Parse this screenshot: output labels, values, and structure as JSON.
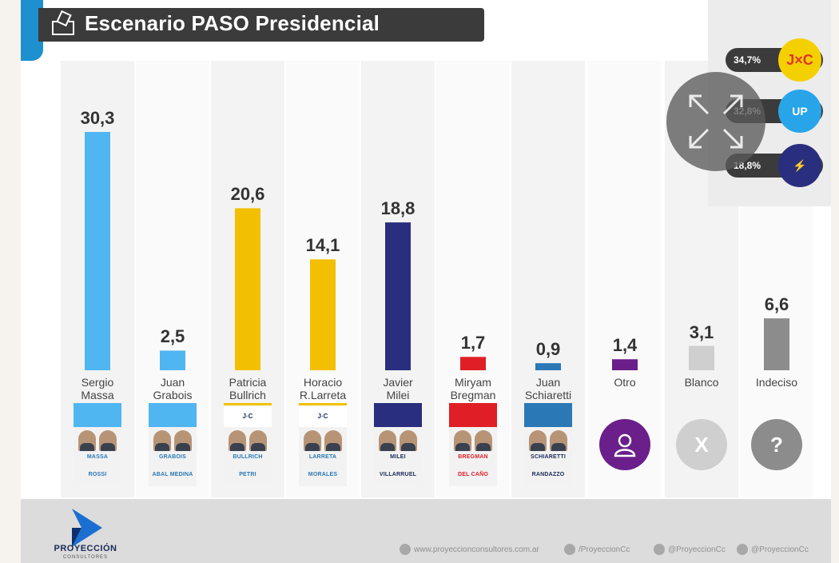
{
  "header": {
    "title": "Escenario PASO Presidencial"
  },
  "chart_data": {
    "type": "bar",
    "title": "Escenario PASO Presidencial",
    "categories": [
      "Sergio Massa",
      "Juan Grabois",
      "Patricia Bullrich",
      "Horacio R.Larreta",
      "Javier Milei",
      "Miryam Bregman",
      "Juan Schiaretti",
      "Otro",
      "Blanco",
      "Indeciso"
    ],
    "values": [
      30.3,
      2.5,
      20.6,
      14.1,
      18.8,
      1.7,
      0.9,
      1.4,
      3.1,
      6.6
    ],
    "value_labels": [
      "30,3",
      "2,5",
      "20,6",
      "14,1",
      "18,8",
      "1,7",
      "0,9",
      "1,4",
      "3,1",
      "6,6"
    ],
    "name_lines": [
      [
        "Sergio",
        "Massa"
      ],
      [
        "Juan",
        "Grabois"
      ],
      [
        "Patricia",
        "Bullrich"
      ],
      [
        "Horacio",
        "R.Larreta"
      ],
      [
        "Javier",
        "Milei"
      ],
      [
        "Miryam",
        "Bregman"
      ],
      [
        "Juan",
        "Schiaretti"
      ],
      [
        "Otro",
        ""
      ],
      [
        "Blanco",
        ""
      ],
      [
        "Indeciso",
        ""
      ]
    ],
    "colors": [
      "#4fb6f2",
      "#4fb6f2",
      "#f2c000",
      "#f2c000",
      "#2a2e7e",
      "#e01e26",
      "#2b78b6",
      "#6a1f8a",
      "#cfcfcf",
      "#8c8c8c"
    ],
    "ylim": [
      0,
      32
    ],
    "grid": false,
    "legend": [
      {
        "value": "34,7%",
        "color": "#f5d000",
        "icon": "jxc-logo-icon",
        "badge_text": "J×C"
      },
      {
        "value": "32,8%",
        "color": "#28a5e8",
        "icon": "sun-logo-icon",
        "badge_text": "UP"
      },
      {
        "value": "18,8%",
        "color": "#2a2e7e",
        "icon": "flame-logo-icon",
        "badge_text": "⚡"
      }
    ]
  },
  "ballots": [
    {
      "header": "",
      "name1": "MASSA",
      "name2": "ROSSI",
      "color": "#4fb6f2"
    },
    {
      "header": "",
      "name1": "GRABOIS",
      "name2": "ABAL MEDINA",
      "color": "#4fb6f2"
    },
    {
      "header": "J·C",
      "name1": "BULLRICH",
      "name2": "PETRI",
      "color": "#f2c000"
    },
    {
      "header": "J·C",
      "name1": "LARRETA",
      "name2": "MORALES",
      "color": "#f2c000"
    },
    {
      "header": "",
      "name1": "MILEI",
      "name2": "VILLARRUEL",
      "color": "#2a2e7e"
    },
    {
      "header": "",
      "name1": "BREGMAN",
      "name2": "DEL CAÑO",
      "color": "#e01e26"
    },
    {
      "header": "",
      "name1": "SCHIARETTI",
      "name2": "RANDAZZO",
      "color": "#2b78b6"
    }
  ],
  "round_icons": [
    {
      "glyph": "",
      "color": "#6a1f8a",
      "icon": "person-icon"
    },
    {
      "glyph": "X",
      "color": "#cfcfcf",
      "icon": "blank-x-icon"
    },
    {
      "glyph": "?",
      "color": "#8c8c8c",
      "icon": "question-icon"
    }
  ],
  "footer": {
    "brand": "PROYECCIÓN",
    "brand_sub": "CONSULTORES",
    "links": [
      {
        "text": "www.proyeccionconsultores.com.ar",
        "icon": "web-icon"
      },
      {
        "text": "/ProyeccionCc",
        "icon": "facebook-icon"
      },
      {
        "text": "@ProyeccionCc",
        "icon": "twitter-icon"
      },
      {
        "text": "@ProyeccionCc",
        "icon": "instagram-icon"
      }
    ]
  }
}
